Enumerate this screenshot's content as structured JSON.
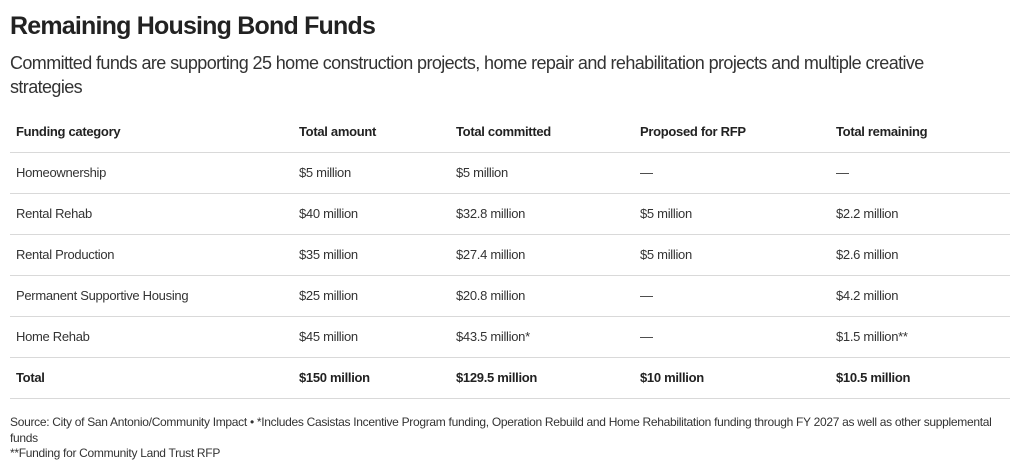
{
  "title": "Remaining Housing Bond Funds",
  "subtitle": "Committed funds are supporting 25 home construction projects, home repair and rehabilitation projects and multiple creative strategies",
  "chart_data": {
    "type": "table",
    "columns": [
      "Funding category",
      "Total amount",
      "Total committed",
      "Proposed for RFP",
      "Total remaining"
    ],
    "rows": [
      [
        "Homeownership",
        "$5 million",
        "$5 million",
        "—",
        "—"
      ],
      [
        "Rental Rehab",
        "$40 million",
        "$32.8 million",
        "$5 million",
        "$2.2 million"
      ],
      [
        "Rental Production",
        "$35 million",
        "$27.4 million",
        "$5 million",
        "$2.6 million"
      ],
      [
        "Permanent Supportive Housing",
        "$25 million",
        "$20.8 million",
        "—",
        "$4.2 million"
      ],
      [
        "Home Rehab",
        "$45 million",
        "$43.5 million*",
        "—",
        "$1.5 million**"
      ],
      [
        "Total",
        "$150 million",
        "$129.5 million",
        "$10 million",
        "$10.5 million"
      ]
    ]
  },
  "footer": {
    "line1": "Source: City of San Antonio/Community Impact • *Includes Casistas Incentive Program funding, Operation Rebuild and Home Rehabilitation funding through FY 2027 as well as other supplemental funds",
    "line2": "**Funding for Community Land Trust RFP"
  }
}
